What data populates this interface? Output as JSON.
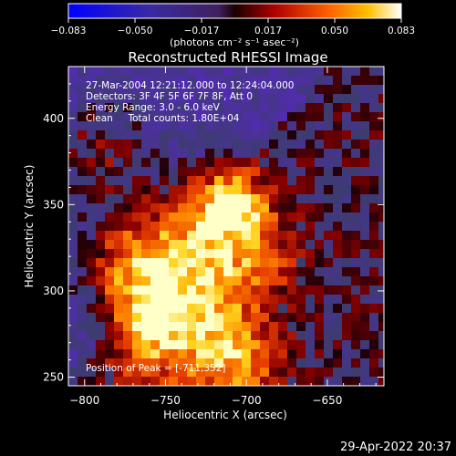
{
  "chart_data": {
    "type": "heatmap",
    "title": "Reconstructed RHESSI Image",
    "xlabel": "Heliocentric X (arcsec)",
    "ylabel": "Heliocentric Y (arcsec)",
    "xlim": [
      -810,
      -615
    ],
    "ylim": [
      245,
      430
    ],
    "xticks": [
      -800,
      -750,
      -700,
      -650
    ],
    "yticks": [
      250,
      300,
      350,
      400
    ],
    "colorbar": {
      "label": "(photons cm⁻² s⁻¹ asec⁻²)",
      "ticks": [
        "−0.083",
        "−0.050",
        "−0.017",
        "0.017",
        "0.050",
        "0.083"
      ],
      "min": -0.083,
      "max": 0.083
    },
    "info_lines": [
      "27-Mar-2004 12:21:12.000 to 12:24:04.000",
      "Detectors: 3F 4F 5F 6F 7F 8F, Att 0",
      "Energy Range: 3.0 - 6.0 keV",
      "Clean     Total counts: 1.80E+04"
    ],
    "peak_text": "Position of Peak = [-711,352]",
    "peak": {
      "x": -711,
      "y": 352
    },
    "timestamp": "29-Apr-2022 20:37",
    "colors": {
      "negative": "#4a2a8a",
      "positive_peak": "#ffffa0",
      "background": "#000000"
    }
  }
}
